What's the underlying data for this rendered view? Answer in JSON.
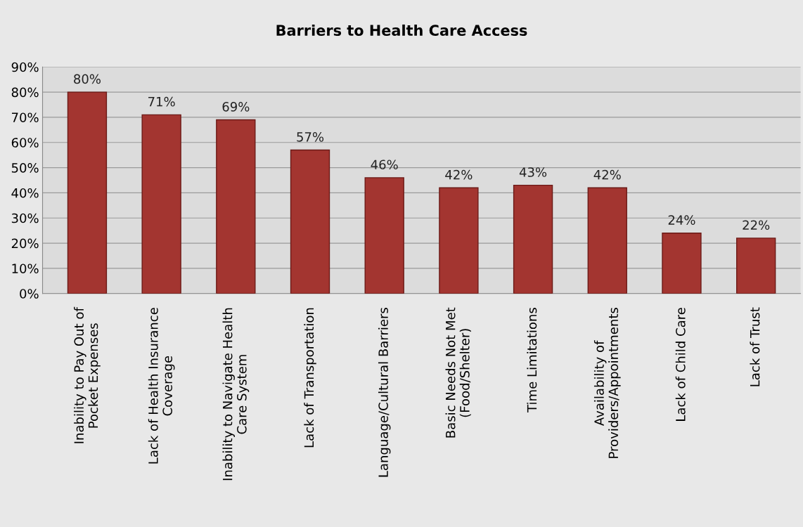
{
  "chart_data": {
    "type": "bar",
    "title": "Barriers to Health Care Access",
    "categories": [
      "Inability to Pay Out of\nPocket Expenses",
      "Lack of Health Insurance\nCoverage",
      "Inability to Navigate Health\nCare System",
      "Lack of Transportation",
      "Language/Cultural Barriers",
      "Basic Needs Not Met\n(Food/Shelter)",
      "Time Limitations",
      "Availability of\nProviders/Appointments",
      "Lack of Child Care",
      "Lack of Trust"
    ],
    "values": [
      80,
      71,
      69,
      57,
      46,
      42,
      43,
      42,
      24,
      22
    ],
    "value_labels": [
      "80%",
      "71%",
      "69%",
      "57%",
      "46%",
      "42%",
      "43%",
      "42%",
      "24%",
      "22%"
    ],
    "color": "#a33530",
    "ylim": [
      0,
      90
    ],
    "yticks": [
      {
        "value": 0,
        "label": "0%"
      },
      {
        "value": 10,
        "label": "10%"
      },
      {
        "value": 20,
        "label": "20%"
      },
      {
        "value": 30,
        "label": "30%"
      },
      {
        "value": 40,
        "label": "40%"
      },
      {
        "value": 50,
        "label": "50%"
      },
      {
        "value": 60,
        "label": "60%"
      },
      {
        "value": 70,
        "label": "70%"
      },
      {
        "value": 80,
        "label": "80%"
      },
      {
        "value": 90,
        "label": "90%"
      }
    ],
    "grid": "y"
  }
}
